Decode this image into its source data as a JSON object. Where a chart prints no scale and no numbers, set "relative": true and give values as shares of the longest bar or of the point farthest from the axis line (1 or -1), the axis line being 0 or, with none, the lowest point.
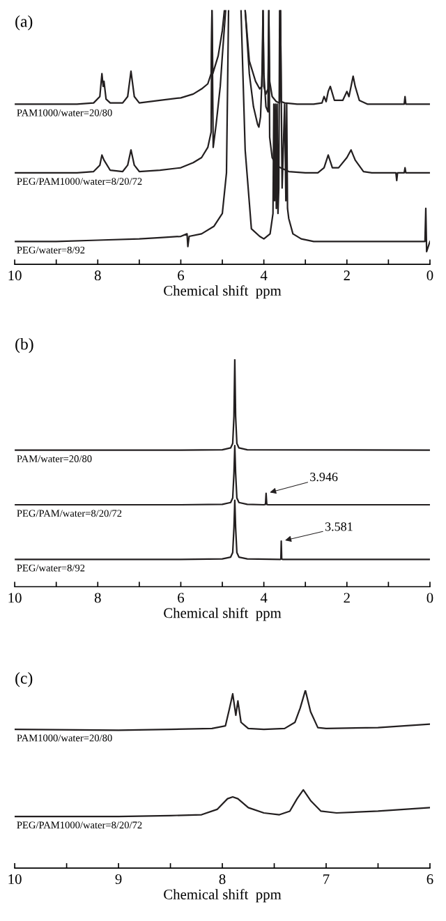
{
  "chart_data": [
    {
      "type": "line",
      "title": "(a)",
      "xlabel": "Chemical shift  ppm",
      "xlim": [
        10,
        0
      ],
      "xticks": [
        10,
        {
          "value": 9,
          "label": null
        },
        8,
        {
          "value": 7,
          "label": null
        },
        6,
        {
          "value": 5,
          "label": null
        },
        4,
        {
          "value": 3,
          "label": null
        },
        2,
        {
          "value": 1,
          "label": null
        },
        0
      ],
      "relative": true,
      "tick_labels": "x",
      "series": [
        {
          "name": "PAM1000/water=20/80",
          "color": "#231f20",
          "x": [
            10,
            9,
            8.5,
            8.1,
            7.95,
            7.9,
            7.87,
            7.85,
            7.8,
            7.7,
            7.4,
            7.28,
            7.2,
            7.12,
            7.0,
            6.5,
            6.0,
            5.7,
            5.5,
            5.35,
            5.27,
            5.25,
            5.23,
            5.1,
            5.0,
            4.95,
            4.7,
            4.45,
            4.35,
            4.2,
            4.1,
            4.05,
            4.02,
            4.0,
            3.95,
            3.9,
            3.88,
            3.86,
            3.8,
            3.7,
            3.62,
            3.6,
            3.58,
            3.5,
            3.2,
            2.8,
            2.6,
            2.55,
            2.5,
            2.45,
            2.4,
            2.3,
            2.1,
            2.0,
            1.95,
            1.9,
            1.85,
            1.8,
            1.7,
            1.5,
            1.0,
            0.62,
            0.6,
            0.58,
            0.3,
            0
          ],
          "values": [
            0.63,
            0.63,
            0.63,
            0.635,
            0.66,
            0.75,
            0.7,
            0.72,
            0.65,
            0.635,
            0.635,
            0.66,
            0.76,
            0.66,
            0.635,
            0.645,
            0.655,
            0.67,
            0.69,
            0.71,
            0.75,
            1,
            0.75,
            0.82,
            0.92,
            1,
            null,
            1,
            0.8,
            0.72,
            0.69,
            0.7,
            1,
            0.7,
            0.67,
            0.69,
            1,
            0.72,
            0.66,
            0.64,
            0.635,
            1,
            0.64,
            0.635,
            0.63,
            0.63,
            0.635,
            0.66,
            0.64,
            0.68,
            0.7,
            0.645,
            0.645,
            0.68,
            0.66,
            0.7,
            0.74,
            0.7,
            0.645,
            0.63,
            0.63,
            0.63,
            0.66,
            0.63,
            0.63,
            0.63
          ]
        },
        {
          "name": "PEG/PAM1000/water=8/20/72",
          "color": "#231f20",
          "x": [
            10,
            9,
            8.5,
            8.1,
            7.95,
            7.9,
            7.85,
            7.7,
            7.4,
            7.28,
            7.2,
            7.12,
            7.0,
            6.5,
            6.0,
            5.7,
            5.5,
            5.35,
            5.27,
            5.25,
            5.22,
            5.15,
            5.05,
            5.0,
            4.92,
            4.7,
            4.45,
            4.35,
            4.25,
            4.15,
            4.12,
            4.08,
            4.03,
            4.02,
            4.0,
            3.95,
            3.9,
            3.88,
            3.86,
            3.8,
            3.7,
            3.6,
            3.4,
            3.0,
            2.7,
            2.55,
            2.45,
            2.35,
            2.2,
            2.0,
            1.9,
            1.8,
            1.6,
            1.4,
            1.0,
            0.82,
            0.8,
            0.78,
            0.62,
            0.6,
            0.58,
            0.3,
            0
          ],
          "values": [
            0.36,
            0.36,
            0.36,
            0.365,
            0.39,
            0.43,
            0.41,
            0.37,
            0.365,
            0.39,
            0.45,
            0.39,
            0.365,
            0.37,
            0.38,
            0.4,
            0.42,
            0.46,
            0.52,
            1,
            0.46,
            0.55,
            0.7,
            0.82,
            1,
            null,
            1,
            0.75,
            0.62,
            0.55,
            0.54,
            0.58,
            0.8,
            1,
            0.75,
            0.62,
            0.6,
            1,
            0.5,
            0.42,
            0.39,
            0.38,
            0.365,
            0.36,
            0.36,
            0.38,
            0.43,
            0.38,
            0.38,
            0.42,
            0.45,
            0.41,
            0.365,
            0.36,
            0.36,
            0.36,
            0.33,
            0.36,
            0.36,
            0.38,
            0.36,
            0.36,
            0.36
          ]
        },
        {
          "name": "PEG/water=8/92",
          "color": "#231f20",
          "x": [
            10,
            9,
            8,
            7,
            6.5,
            6.0,
            5.85,
            5.83,
            5.8,
            5.5,
            5.2,
            5.0,
            4.9,
            4.85,
            4.7,
            4.55,
            4.45,
            4.3,
            4.1,
            4.0,
            3.85,
            3.78,
            3.76,
            3.74,
            3.72,
            3.7,
            3.68,
            3.66,
            3.64,
            3.62,
            3.6,
            3.56,
            3.5,
            3.47,
            3.45,
            3.43,
            3.4,
            3.3,
            3.1,
            2.8,
            2.0,
            1.0,
            0.5,
            0.12,
            0.1,
            0.08,
            0
          ],
          "values": [
            0.09,
            0.09,
            0.095,
            0.1,
            0.105,
            0.11,
            0.12,
            0.07,
            0.11,
            0.12,
            0.15,
            0.2,
            0.36,
            1,
            null,
            1,
            0.45,
            0.14,
            0.11,
            0.1,
            0.12,
            0.2,
            0.63,
            0.25,
            0.63,
            0.22,
            0.63,
            0.2,
            0.3,
            1,
            1,
            0.3,
            0.63,
            0.25,
            0.63,
            0.22,
            0.18,
            0.12,
            0.1,
            0.09,
            0.09,
            0.09,
            0.09,
            0.09,
            0.22,
            0.05,
            0.09
          ]
        }
      ]
    },
    {
      "type": "line",
      "title": "(b)",
      "xlabel": "Chemical shift  ppm",
      "xlim": [
        10,
        0
      ],
      "xticks": [
        10,
        {
          "value": 9,
          "label": null
        },
        8,
        {
          "value": 7,
          "label": null
        },
        6,
        {
          "value": 5,
          "label": null
        },
        4,
        {
          "value": 3,
          "label": null
        },
        2,
        {
          "value": 1,
          "label": null
        },
        0
      ],
      "relative": true,
      "tick_labels": "x",
      "annotations": [
        {
          "text": "3.946",
          "x": 3.946,
          "y": 0.41
        },
        {
          "text": "3.581",
          "x": 3.581,
          "y": 0.2
        }
      ],
      "series": [
        {
          "name": "PAM/water=20/80",
          "color": "#231f20",
          "x": [
            10,
            6,
            5,
            4.8,
            4.75,
            4.72,
            4.7,
            4.68,
            4.65,
            4.6,
            4.4,
            0
          ],
          "values": [
            0.6,
            0.6,
            0.602,
            0.61,
            0.63,
            0.75,
            1.0,
            0.75,
            0.63,
            0.61,
            0.602,
            0.6
          ]
        },
        {
          "name": "PEG/PAM/water=8/20/72",
          "color": "#231f20",
          "x": [
            10,
            6,
            5,
            4.8,
            4.75,
            4.72,
            4.7,
            4.68,
            4.65,
            4.6,
            4.4,
            4.0,
            3.96,
            3.946,
            3.93,
            3.9,
            0
          ],
          "values": [
            0.36,
            0.36,
            0.362,
            0.37,
            0.39,
            0.5,
            0.62,
            0.5,
            0.39,
            0.37,
            0.362,
            0.36,
            0.362,
            0.41,
            0.362,
            0.36,
            0.36
          ]
        },
        {
          "name": "PEG/water=8/92",
          "color": "#231f20",
          "x": [
            10,
            6,
            5,
            4.8,
            4.75,
            4.72,
            4.7,
            4.68,
            4.65,
            4.6,
            4.4,
            3.6,
            3.59,
            3.581,
            3.57,
            3.55,
            0
          ],
          "values": [
            0.12,
            0.12,
            0.122,
            0.13,
            0.15,
            0.26,
            0.38,
            0.26,
            0.15,
            0.13,
            0.122,
            0.12,
            0.122,
            0.2,
            0.122,
            0.12,
            0.12
          ]
        }
      ]
    },
    {
      "type": "line",
      "title": "(c)",
      "xlabel": "Chemical shift  ppm",
      "xlim": [
        10,
        6
      ],
      "xticks": [
        10,
        {
          "value": 9.5,
          "label": null
        },
        9,
        {
          "value": 8.5,
          "label": null
        },
        8,
        {
          "value": 7.5,
          "label": null
        },
        7,
        {
          "value": 6.5,
          "label": null
        },
        6
      ],
      "relative": true,
      "tick_labels": "x",
      "series": [
        {
          "name": "PAM1000/water=20/80",
          "color": "#231f20",
          "x": [
            10,
            9,
            8.5,
            8.1,
            7.97,
            7.93,
            7.9,
            7.87,
            7.85,
            7.82,
            7.78,
            7.75,
            7.6,
            7.4,
            7.3,
            7.25,
            7.2,
            7.15,
            7.08,
            7.0,
            6.5,
            6.0
          ],
          "values": [
            0.78,
            0.775,
            0.78,
            0.785,
            0.8,
            0.9,
            0.98,
            0.86,
            0.94,
            0.82,
            0.8,
            0.785,
            0.78,
            0.785,
            0.82,
            0.9,
            1.0,
            0.88,
            0.79,
            0.785,
            0.79,
            0.81
          ]
        },
        {
          "name": "PEG/PAM1000/water=8/20/72",
          "color": "#231f20",
          "x": [
            10,
            9,
            8.5,
            8.2,
            8.05,
            7.95,
            7.9,
            7.85,
            7.75,
            7.6,
            7.45,
            7.35,
            7.28,
            7.22,
            7.15,
            7.05,
            6.9,
            6.5,
            6.0
          ],
          "values": [
            0.29,
            0.29,
            0.295,
            0.3,
            0.33,
            0.39,
            0.4,
            0.39,
            0.34,
            0.31,
            0.3,
            0.32,
            0.39,
            0.44,
            0.38,
            0.32,
            0.31,
            0.32,
            0.34
          ]
        }
      ]
    }
  ]
}
